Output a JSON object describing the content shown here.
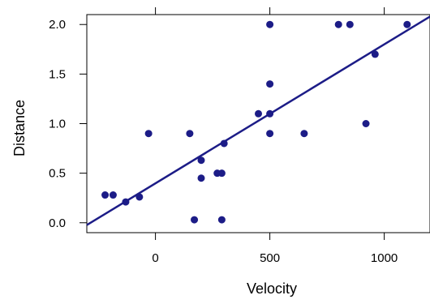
{
  "chart_data": {
    "type": "scatter",
    "title": "",
    "xlabel": "Velocity",
    "ylabel": "Distance",
    "xlim": [
      -300,
      1200
    ],
    "ylim": [
      -0.1,
      2.1
    ],
    "x_ticks": [
      {
        "value": 0,
        "label": "0"
      },
      {
        "value": 500,
        "label": "500"
      },
      {
        "value": 1000,
        "label": "1000"
      }
    ],
    "y_ticks": [
      {
        "value": 0.0,
        "label": "0.0"
      },
      {
        "value": 0.5,
        "label": "0.5"
      },
      {
        "value": 1.0,
        "label": "1.0"
      },
      {
        "value": 1.5,
        "label": "1.5"
      },
      {
        "value": 2.0,
        "label": "2.0"
      }
    ],
    "top_ticks": [
      0,
      500,
      1000
    ],
    "grid": false,
    "point_color": "#1c1c87",
    "line_color": "#1c1c87",
    "points": [
      {
        "x": -220,
        "y": 0.28
      },
      {
        "x": -185,
        "y": 0.28
      },
      {
        "x": -130,
        "y": 0.21
      },
      {
        "x": -70,
        "y": 0.26
      },
      {
        "x": -30,
        "y": 0.9
      },
      {
        "x": 150,
        "y": 0.9
      },
      {
        "x": 170,
        "y": 0.03
      },
      {
        "x": 200,
        "y": 0.63
      },
      {
        "x": 200,
        "y": 0.45
      },
      {
        "x": 270,
        "y": 0.5
      },
      {
        "x": 290,
        "y": 0.5
      },
      {
        "x": 290,
        "y": 0.03
      },
      {
        "x": 300,
        "y": 0.8
      },
      {
        "x": 450,
        "y": 1.1
      },
      {
        "x": 500,
        "y": 2.0
      },
      {
        "x": 500,
        "y": 1.4
      },
      {
        "x": 500,
        "y": 1.1
      },
      {
        "x": 500,
        "y": 0.9
      },
      {
        "x": 650,
        "y": 0.9
      },
      {
        "x": 800,
        "y": 2.0
      },
      {
        "x": 850,
        "y": 2.0
      },
      {
        "x": 920,
        "y": 1.0
      },
      {
        "x": 960,
        "y": 1.7
      },
      {
        "x": 1100,
        "y": 2.0
      }
    ],
    "fit_line": {
      "x": [
        -300,
        1200
      ],
      "y": [
        -0.023,
        2.08
      ]
    }
  }
}
